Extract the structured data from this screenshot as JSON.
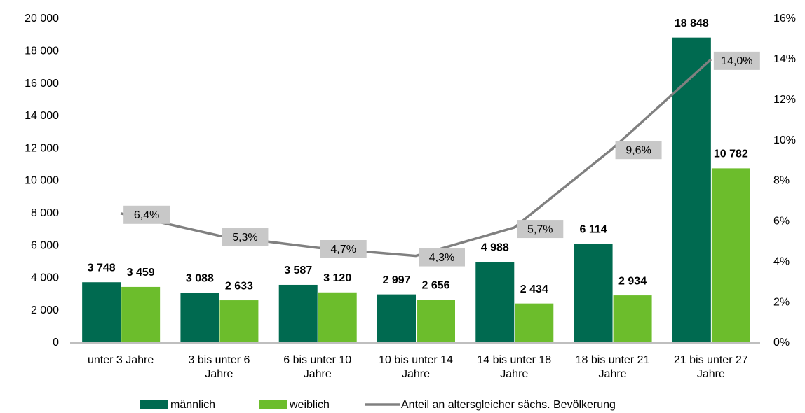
{
  "chart_data": {
    "type": "bar",
    "categories": [
      "unter 3 Jahre",
      "3 bis unter 6 Jahre",
      "6 bis unter 10 Jahre",
      "10 bis unter 14 Jahre",
      "14 bis unter 18 Jahre",
      "18 bis unter 21 Jahre",
      "21 bis unter 27 Jahre"
    ],
    "series": [
      {
        "name": "männlich",
        "type": "bar",
        "color": "#006a50",
        "values": [
          3748,
          3088,
          3587,
          2997,
          4988,
          6114,
          18848
        ],
        "value_labels": [
          "3 748",
          "3 088",
          "3 587",
          "2 997",
          "4 988",
          "6 114",
          "18 848"
        ]
      },
      {
        "name": "weiblich",
        "type": "bar",
        "color": "#6cbd2c",
        "values": [
          3459,
          2633,
          3120,
          2656,
          2434,
          2934,
          10782
        ],
        "value_labels": [
          "3 459",
          "2 633",
          "3 120",
          "2 656",
          "2 434",
          "2 934",
          "10 782"
        ]
      },
      {
        "name": "Anteil an altersgleicher sächs. Bevölkerung",
        "type": "line",
        "axis": "y2",
        "color": "#808080",
        "values": [
          6.4,
          5.3,
          4.7,
          4.3,
          5.7,
          9.6,
          14.0
        ],
        "value_labels": [
          "6,4%",
          "5,3%",
          "4,7%",
          "4,3%",
          "5,7%",
          "9,6%",
          "14,0%"
        ]
      }
    ],
    "ylim": [
      0,
      20000
    ],
    "yticks": [
      0,
      {
        "value": 2000,
        "label": "2 000"
      },
      {
        "value": 4000,
        "label": "4 000"
      },
      {
        "value": 6000,
        "label": "6 000"
      },
      {
        "value": 8000,
        "label": "8 000"
      },
      {
        "value": 10000,
        "label": "10 000"
      },
      {
        "value": 12000,
        "label": "12 000"
      },
      {
        "value": 14000,
        "label": "14 000"
      },
      {
        "value": 16000,
        "label": "16 000"
      },
      {
        "value": 18000,
        "label": "18 000"
      },
      {
        "value": 20000,
        "label": "20 000"
      }
    ],
    "y2lim": [
      0,
      16
    ],
    "y2ticks": [
      {
        "value": 0,
        "label": "0%"
      },
      {
        "value": 2,
        "label": "2%"
      },
      {
        "value": 4,
        "label": "4%"
      },
      {
        "value": 6,
        "label": "6%"
      },
      {
        "value": 8,
        "label": "8%"
      },
      {
        "value": 10,
        "label": "10%"
      },
      {
        "value": 12,
        "label": "12%"
      },
      {
        "value": 14,
        "label": "14%"
      },
      {
        "value": 16,
        "label": "16%"
      }
    ],
    "legend": "bottom"
  }
}
